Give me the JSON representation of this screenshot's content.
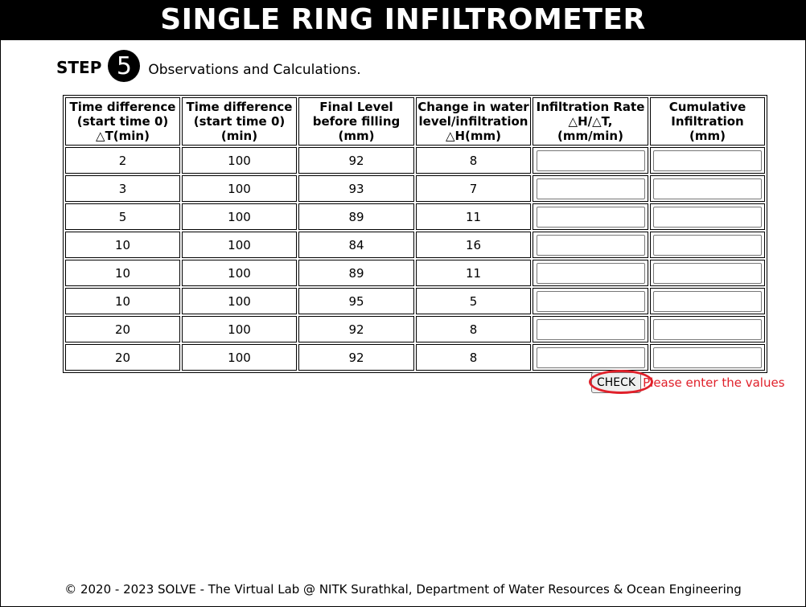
{
  "title": "SINGLE RING INFILTROMETER",
  "step": {
    "word": "STEP",
    "number": "5",
    "text": "Observations and Calculations."
  },
  "table": {
    "headers": [
      "Time difference (start time 0) △T(min)",
      "Time difference (start time 0) (min)",
      "Final Level before filling (mm)",
      "Change in water level/infiltration △H(mm)",
      "Infiltration Rate △H/△T, (mm/min)",
      "Cumulative Infiltration (mm)"
    ],
    "header_lines": [
      [
        "Time difference",
        "(start time 0)",
        "△T(min)"
      ],
      [
        "Time difference",
        "(start time 0)",
        "(min)"
      ],
      [
        "Final Level",
        "before filling",
        "(mm)"
      ],
      [
        "Change in water",
        "level/infiltration",
        "△H(mm)"
      ],
      [
        "Infiltration Rate",
        "△H/△T,",
        "(mm/min)"
      ],
      [
        "Cumulative",
        "Infiltration",
        "(mm)"
      ]
    ],
    "rows": [
      {
        "dt": "2",
        "t": "100",
        "level": "92",
        "dh": "8",
        "rate": "",
        "cumulative": ""
      },
      {
        "dt": "3",
        "t": "100",
        "level": "93",
        "dh": "7",
        "rate": "",
        "cumulative": ""
      },
      {
        "dt": "5",
        "t": "100",
        "level": "89",
        "dh": "11",
        "rate": "",
        "cumulative": ""
      },
      {
        "dt": "10",
        "t": "100",
        "level": "84",
        "dh": "16",
        "rate": "",
        "cumulative": ""
      },
      {
        "dt": "10",
        "t": "100",
        "level": "89",
        "dh": "11",
        "rate": "",
        "cumulative": ""
      },
      {
        "dt": "10",
        "t": "100",
        "level": "95",
        "dh": "5",
        "rate": "",
        "cumulative": ""
      },
      {
        "dt": "20",
        "t": "100",
        "level": "92",
        "dh": "8",
        "rate": "",
        "cumulative": ""
      },
      {
        "dt": "20",
        "t": "100",
        "level": "92",
        "dh": "8",
        "rate": "",
        "cumulative": ""
      }
    ]
  },
  "check": {
    "label": "CHECK",
    "message": "Please enter the values"
  },
  "colors": {
    "title_bg": "#000000",
    "title_fg": "#ffffff",
    "highlight_red": "#e0202a"
  },
  "footer": "© 2020 - 2023 SOLVE - The Virtual Lab @ NITK Surathkal, Department of Water Resources & Ocean Engineering"
}
